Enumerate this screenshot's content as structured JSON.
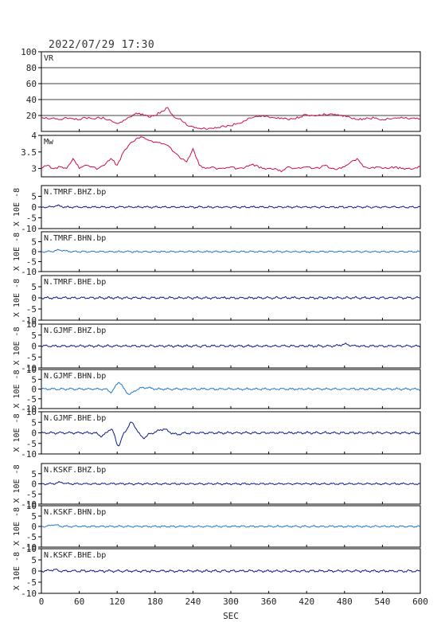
{
  "header": {
    "datetime": "2022/07/29 17:30"
  },
  "x_axis": {
    "label": "SEC",
    "range": [
      0,
      600
    ],
    "ticks": [
      0,
      60,
      120,
      180,
      240,
      300,
      360,
      420,
      480,
      540,
      600
    ]
  },
  "colors": {
    "vr_mw": "#cc1144",
    "dark_blue": "#0a1a8a",
    "light_blue": "#1f78c8",
    "frame": "#000000",
    "grid": "#000000"
  },
  "chart_data": [
    {
      "type": "line",
      "title": "VR",
      "ylabel": "",
      "ylim": [
        0,
        100
      ],
      "yticks": [
        20,
        40,
        60,
        80,
        100
      ],
      "grid": true,
      "x": [
        0,
        10,
        20,
        30,
        40,
        50,
        60,
        70,
        80,
        90,
        100,
        110,
        120,
        130,
        140,
        150,
        160,
        170,
        180,
        190,
        200,
        210,
        220,
        230,
        240,
        250,
        260,
        270,
        280,
        290,
        300,
        310,
        320,
        330,
        340,
        350,
        360,
        370,
        380,
        390,
        400,
        410,
        420,
        430,
        440,
        450,
        460,
        470,
        480,
        490,
        500,
        510,
        520,
        530,
        540,
        550,
        560,
        570,
        580,
        590,
        600
      ],
      "series": [
        {
          "color": "#cc1144",
          "values": [
            18,
            16,
            17,
            15,
            17,
            16,
            15,
            17,
            16,
            18,
            16,
            14,
            10,
            14,
            18,
            23,
            22,
            18,
            20,
            25,
            30,
            18,
            16,
            8,
            6,
            4,
            3,
            4,
            5,
            6,
            7,
            10,
            13,
            17,
            19,
            20,
            18,
            17,
            17,
            15,
            16,
            18,
            21,
            20,
            21,
            21,
            22,
            21,
            20,
            17,
            15,
            16,
            16,
            17,
            15,
            16,
            17,
            18,
            16,
            17,
            16
          ]
        }
      ]
    },
    {
      "type": "line",
      "title": "Mw",
      "ylabel": "",
      "ylim": [
        2.75,
        4.0
      ],
      "yticks": [
        3.0,
        3.5,
        4.0
      ],
      "grid": false,
      "x": [
        0,
        10,
        20,
        30,
        40,
        50,
        60,
        70,
        80,
        90,
        100,
        110,
        120,
        130,
        140,
        150,
        160,
        170,
        180,
        190,
        200,
        210,
        220,
        230,
        240,
        250,
        260,
        270,
        280,
        290,
        300,
        310,
        320,
        330,
        340,
        350,
        360,
        370,
        380,
        390,
        400,
        410,
        420,
        430,
        440,
        450,
        460,
        470,
        480,
        490,
        500,
        510,
        520,
        530,
        540,
        550,
        560,
        570,
        580,
        590,
        600
      ],
      "series": [
        {
          "color": "#cc1144",
          "values": [
            3.0,
            3.1,
            3.0,
            3.05,
            3.0,
            3.3,
            3.0,
            3.1,
            3.05,
            3.0,
            3.1,
            3.3,
            3.1,
            3.5,
            3.75,
            3.9,
            3.95,
            3.85,
            3.8,
            3.75,
            3.7,
            3.5,
            3.3,
            3.2,
            3.6,
            3.1,
            3.0,
            3.05,
            3.0,
            3.0,
            3.05,
            3.0,
            3.0,
            3.1,
            3.1,
            3.0,
            3.0,
            3.0,
            2.9,
            3.05,
            3.0,
            3.0,
            3.05,
            3.0,
            3.0,
            3.1,
            3.0,
            3.0,
            3.05,
            3.2,
            3.3,
            3.05,
            3.0,
            3.05,
            3.0,
            3.0,
            3.05,
            3.0,
            3.0,
            3.0,
            3.05
          ]
        }
      ]
    },
    {
      "type": "line",
      "title": "N.TMRF.BHZ.bp",
      "ylabel": "X 10E -8",
      "ylim": [
        -10,
        10
      ],
      "yticks": [
        -10,
        -5,
        0,
        5
      ],
      "grid": false,
      "series": [
        {
          "color": "#0a1a8a",
          "profile": "noise",
          "amplitude": 0.5,
          "events": [
            {
              "t": 25,
              "a": 0.6,
              "w": 8
            }
          ]
        }
      ]
    },
    {
      "type": "line",
      "title": "N.TMRF.BHN.bp",
      "ylabel": "X 10E -8",
      "ylim": [
        -10,
        10
      ],
      "yticks": [
        -10,
        -5,
        0,
        5
      ],
      "grid": false,
      "series": [
        {
          "color": "#1f78c8",
          "profile": "noise",
          "amplitude": 0.5,
          "events": [
            {
              "t": 30,
              "a": 0.8,
              "w": 10
            }
          ]
        }
      ]
    },
    {
      "type": "line",
      "title": "N.TMRF.BHE.bp",
      "ylabel": "X 10E -8",
      "ylim": [
        -10,
        10
      ],
      "yticks": [
        -10,
        -5,
        0,
        5
      ],
      "grid": false,
      "series": [
        {
          "color": "#0a1a8a",
          "profile": "noise",
          "amplitude": 0.6,
          "events": []
        }
      ]
    },
    {
      "type": "line",
      "title": "N.GJMF.BHZ.bp",
      "ylabel": "X 10E -8",
      "ylim": [
        -10,
        10
      ],
      "yticks": [
        -10,
        -5,
        0,
        5,
        10
      ],
      "grid": false,
      "series": [
        {
          "color": "#0a1a8a",
          "profile": "noise",
          "amplitude": 0.6,
          "events": [
            {
              "t": 480,
              "a": 0.8,
              "w": 10
            }
          ]
        }
      ]
    },
    {
      "type": "line",
      "title": "N.GJMF.BHN.bp",
      "ylabel": "X 10E -8",
      "ylim": [
        -10,
        10
      ],
      "yticks": [
        -10,
        -5,
        0,
        5,
        10
      ],
      "grid": false,
      "series": [
        {
          "color": "#1f78c8",
          "profile": "noise",
          "amplitude": 0.6,
          "events": [
            {
              "t": 110,
              "a": -1.5,
              "w": 5
            },
            {
              "t": 123,
              "a": 3.5,
              "w": 6
            },
            {
              "t": 140,
              "a": -2.5,
              "w": 8
            },
            {
              "t": 165,
              "a": 0.8,
              "w": 10
            }
          ]
        }
      ]
    },
    {
      "type": "line",
      "title": "N.GJMF.BHE.bp",
      "ylabel": "X 10E -8",
      "ylim": [
        -10,
        10
      ],
      "yticks": [
        -10,
        -5,
        0,
        5,
        10
      ],
      "grid": false,
      "series": [
        {
          "color": "#0a1a8a",
          "profile": "noise",
          "amplitude": 0.6,
          "events": [
            {
              "t": 95,
              "a": -1.5,
              "w": 6
            },
            {
              "t": 110,
              "a": 1.8,
              "w": 6
            },
            {
              "t": 122,
              "a": -6.0,
              "w": 6
            },
            {
              "t": 143,
              "a": 4.8,
              "w": 8
            },
            {
              "t": 162,
              "a": -2.2,
              "w": 8
            },
            {
              "t": 193,
              "a": 1.8,
              "w": 10
            },
            {
              "t": 215,
              "a": -0.7,
              "w": 10
            }
          ]
        }
      ]
    },
    {
      "type": "line",
      "title": "N.KSKF.BHZ.bp",
      "ylabel": "X 10E -8",
      "ylim": [
        -10,
        10
      ],
      "yticks": [
        -10,
        -5,
        0,
        5
      ],
      "grid": false,
      "series": [
        {
          "color": "#0a1a8a",
          "profile": "noise",
          "amplitude": 0.5,
          "events": [
            {
              "t": 30,
              "a": 0.7,
              "w": 8
            }
          ]
        }
      ]
    },
    {
      "type": "line",
      "title": "N.KSKF.BHN.bp",
      "ylabel": "X 10E -8",
      "ylim": [
        -10,
        10
      ],
      "yticks": [
        -10,
        -5,
        0,
        5,
        10
      ],
      "grid": false,
      "series": [
        {
          "color": "#1f78c8",
          "profile": "noise",
          "amplitude": 0.5,
          "events": [
            {
              "t": 20,
              "a": 0.8,
              "w": 8
            }
          ]
        }
      ]
    },
    {
      "type": "line",
      "title": "N.KSKF.BHE.bp",
      "ylabel": "X 10E -8",
      "ylim": [
        -10,
        10
      ],
      "yticks": [
        -10,
        -5,
        0,
        5,
        10
      ],
      "grid": false,
      "series": [
        {
          "color": "#0a1a8a",
          "profile": "noise",
          "amplitude": 0.6,
          "events": [
            {
              "t": 20,
              "a": 0.6,
              "w": 8
            }
          ]
        }
      ]
    }
  ]
}
